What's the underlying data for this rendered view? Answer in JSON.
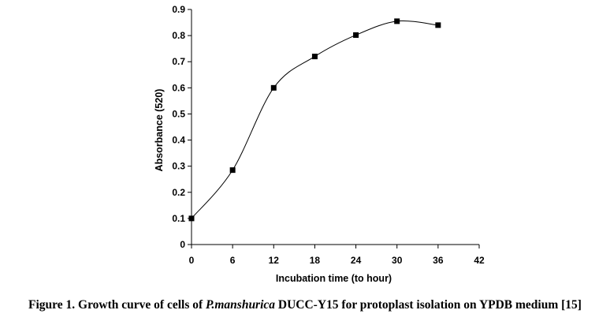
{
  "chart_data": {
    "type": "scatter",
    "xlabel": "Incubation time (to hour)",
    "ylabel": "Absorbance (520)",
    "xlim": [
      0,
      42
    ],
    "ylim": [
      0,
      0.9
    ],
    "x_ticks": [
      "0",
      "6",
      "12",
      "18",
      "24",
      "30",
      "36",
      "42"
    ],
    "y_ticks": [
      "0",
      "0.1",
      "0.2",
      "0.3",
      "0.4",
      "0.5",
      "0.6",
      "0.7",
      "0.8",
      "0.9"
    ],
    "x_tick_values": [
      0,
      6,
      12,
      18,
      24,
      30,
      36,
      42
    ],
    "y_tick_values": [
      0,
      0.1,
      0.2,
      0.3,
      0.4,
      0.5,
      0.6,
      0.7,
      0.8,
      0.9
    ],
    "series": [
      {
        "name": "Absorbance",
        "x": [
          0,
          6,
          12,
          18,
          24,
          30,
          36
        ],
        "values": [
          0.1,
          0.285,
          0.6,
          0.72,
          0.802,
          0.855,
          0.84
        ],
        "marker": "square",
        "line": "smooth"
      }
    ],
    "colors": {
      "line": "#000000",
      "marker": "#000000",
      "axis": "#000000"
    }
  },
  "caption": {
    "lead": "Figure 1. Growth curve of cells of ",
    "species": "P.manshurica",
    "tail": " DUCC-Y15  for protoplast isolation on YPDB medium [15]"
  }
}
